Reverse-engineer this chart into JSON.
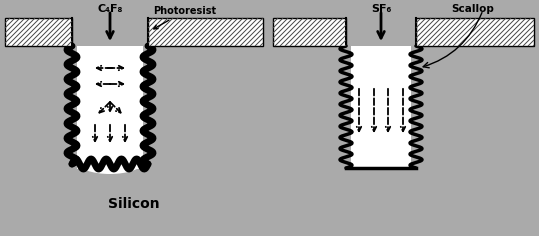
{
  "bg_color": "#aaaaaa",
  "white": "#ffffff",
  "black": "#000000",
  "silicon_label": "Silicon",
  "c4f8_label": "C₄F₈",
  "sf6_label": "SF₆",
  "photoresist_label": "Photoresist",
  "scallop_label": "Scallop",
  "fig_width": 5.39,
  "fig_height": 2.36,
  "dpi": 100
}
